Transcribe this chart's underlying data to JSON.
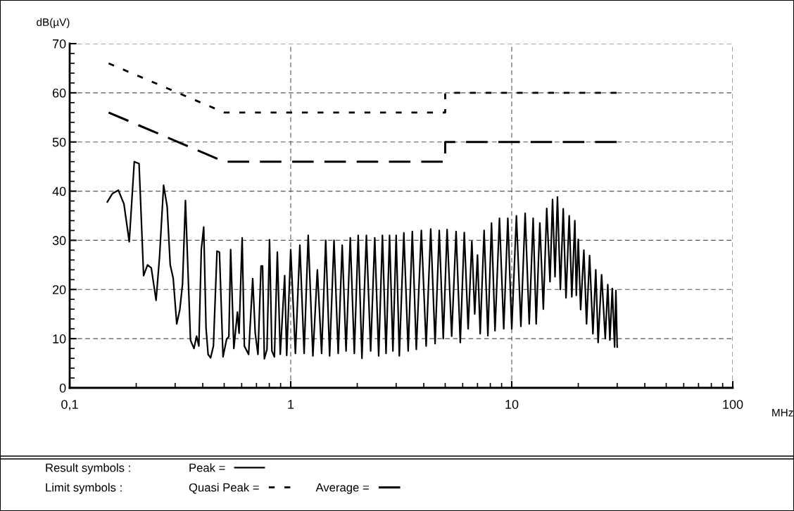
{
  "chart_data": {
    "type": "line",
    "xlabel": "MHz",
    "ylabel": "dB(µV)",
    "log": "x",
    "xlim": [
      0.1,
      100
    ],
    "ylim": [
      0,
      70
    ],
    "xticks": [
      {
        "value": 0.1,
        "label": "0,1"
      },
      1,
      10,
      100
    ],
    "yticks": [
      0,
      10,
      20,
      30,
      40,
      50,
      60,
      70
    ],
    "grid": true,
    "legend": "bottom",
    "annotations": [
      "Result symbols :",
      "Limit symbols :"
    ],
    "series": [
      {
        "name": "Peak =",
        "color": "#000000",
        "line_style": "solid",
        "x": [
          0.148,
          0.156,
          0.166,
          0.176,
          0.186,
          0.196,
          0.206,
          0.216,
          0.225,
          0.234,
          0.246,
          0.255,
          0.266,
          0.276,
          0.285,
          0.294,
          0.305,
          0.315,
          0.324,
          0.334,
          0.352,
          0.365,
          0.375,
          0.384,
          0.394,
          0.404,
          0.414,
          0.423,
          0.434,
          0.447,
          0.464,
          0.476,
          0.494,
          0.513,
          0.525,
          0.535,
          0.553,
          0.574,
          0.584,
          0.603,
          0.617,
          0.645,
          0.673,
          0.691,
          0.711,
          0.734,
          0.746,
          0.76,
          0.781,
          0.802,
          0.822,
          0.844,
          0.87,
          0.897,
          0.939,
          0.959,
          1.0,
          1.05,
          1.1,
          1.15,
          1.2,
          1.26,
          1.32,
          1.38,
          1.44,
          1.5,
          1.57,
          1.64,
          1.71,
          1.78,
          1.86,
          1.94,
          2.02,
          2.1,
          2.2,
          2.3,
          2.4,
          2.5,
          2.6,
          2.7,
          2.8,
          2.9,
          3.0,
          3.1,
          3.25,
          3.4,
          3.55,
          3.7,
          3.9,
          4.1,
          4.3,
          4.5,
          4.7,
          4.9,
          5.1,
          5.35,
          5.6,
          5.85,
          6.1,
          6.35,
          6.6,
          6.8,
          7.0,
          7.2,
          7.5,
          7.8,
          8.1,
          8.4,
          8.8,
          9.2,
          9.6,
          10.0,
          10.5,
          11.0,
          11.5,
          12.0,
          12.5,
          12.9,
          13.4,
          13.9,
          14.4,
          14.9,
          15.3,
          15.7,
          16.1,
          16.6,
          17.1,
          17.6,
          18.2,
          18.7,
          19.3,
          19.6,
          20.0,
          20.5,
          21.2,
          21.8,
          22.5,
          23.3,
          24.0,
          24.6,
          25.5,
          26.5,
          27.2,
          27.8,
          28.5,
          29.2,
          29.6,
          30.0
        ],
        "values": [
          37.8,
          39.5,
          40.2,
          37.4,
          29.7,
          46.0,
          45.6,
          22.8,
          25,
          24.4,
          17.8,
          26.6,
          41.2,
          36.9,
          25,
          22.3,
          13,
          15.9,
          21.1,
          38.1,
          9.7,
          8,
          10.5,
          8.5,
          28.1,
          32.7,
          12.1,
          6.8,
          6.1,
          8.5,
          27.8,
          27.6,
          6.3,
          9.9,
          10.4,
          28.1,
          8,
          15.4,
          11.1,
          30.5,
          8.5,
          6.8,
          22.2,
          11.1,
          6.8,
          24.8,
          24.8,
          5.9,
          7.8,
          30.1,
          7.5,
          6.3,
          27.6,
          6.8,
          22.8,
          6.6,
          28.1,
          7,
          29,
          7,
          31,
          6.5,
          24,
          7,
          30,
          6.5,
          30,
          7,
          29,
          7.5,
          30.5,
          7,
          31,
          6,
          31,
          7.5,
          30.5,
          6.5,
          31,
          7,
          31,
          7.5,
          31,
          6.5,
          31.5,
          7.5,
          31.8,
          7.8,
          32,
          8.5,
          32.3,
          9,
          32,
          10,
          32.2,
          10.5,
          31.8,
          9.2,
          31.6,
          12,
          29.8,
          15,
          27,
          11,
          32,
          10.6,
          33.5,
          11.6,
          34.5,
          12,
          34.5,
          12,
          35,
          12.5,
          35.5,
          13,
          34.5,
          13,
          33.5,
          16,
          36.5,
          21.6,
          38.3,
          22.6,
          38.8,
          20,
          36.4,
          18.3,
          35,
          18.5,
          34,
          18.8,
          30.2,
          15.9,
          28,
          13,
          26.9,
          11,
          24,
          9.2,
          23,
          10,
          21,
          9.7,
          20.2,
          8.3,
          19.8,
          8.3
        ]
      },
      {
        "name": "Quasi Peak =",
        "color": "#000000",
        "line_style": "dotted",
        "x": [
          0.15,
          0.5,
          5,
          5,
          30
        ],
        "values": [
          66,
          56,
          56,
          60,
          60
        ]
      },
      {
        "name": "Average =",
        "color": "#000000",
        "line_style": "dashed",
        "x": [
          0.15,
          0.5,
          5,
          5,
          30
        ],
        "values": [
          56,
          46,
          46,
          50,
          50
        ]
      }
    ]
  }
}
